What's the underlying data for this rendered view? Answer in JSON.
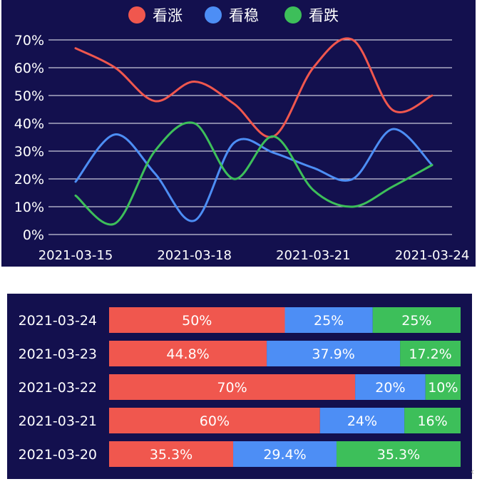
{
  "chart_data": [
    {
      "type": "line",
      "title": "",
      "xlabel": "",
      "ylabel": "",
      "legend_position": "top-center",
      "grid": true,
      "x": [
        "2021-03-15",
        "2021-03-16",
        "2021-03-17",
        "2021-03-18",
        "2021-03-19",
        "2021-03-20",
        "2021-03-21",
        "2021-03-22",
        "2021-03-23",
        "2021-03-24"
      ],
      "x_tick_labels": [
        "2021-03-15",
        "2021-03-18",
        "2021-03-21",
        "2021-03-24"
      ],
      "ylim": [
        0,
        70
      ],
      "y_tick_labels": [
        "0%",
        "10%",
        "20%",
        "30%",
        "40%",
        "50%",
        "60%",
        "70%"
      ],
      "series": [
        {
          "name": "看涨",
          "color": "#f0574e",
          "values": [
            67,
            60,
            48,
            55,
            47,
            35.3,
            60,
            70,
            44.8,
            50
          ]
        },
        {
          "name": "看稳",
          "color": "#4d8ef5",
          "values": [
            19,
            36,
            22,
            5,
            33,
            29.4,
            24,
            20,
            37.9,
            25
          ]
        },
        {
          "name": "看跌",
          "color": "#3dbf5a",
          "values": [
            14,
            4,
            30,
            40,
            20,
            35.3,
            16,
            10,
            17.2,
            25
          ]
        }
      ]
    },
    {
      "type": "bar",
      "orientation": "horizontal",
      "stacked": true,
      "categories": [
        "2021-03-24",
        "2021-03-23",
        "2021-03-22",
        "2021-03-21",
        "2021-03-20"
      ],
      "series": [
        {
          "name": "看涨",
          "color": "#f0574e",
          "values": [
            50,
            44.8,
            70,
            60,
            35.3
          ],
          "labels": [
            "50%",
            "44.8%",
            "70%",
            "60%",
            "35.3%"
          ]
        },
        {
          "name": "看稳",
          "color": "#4d8ef5",
          "values": [
            25,
            37.9,
            20,
            24,
            29.4
          ],
          "labels": [
            "25%",
            "37.9%",
            "20%",
            "24%",
            "29.4%"
          ]
        },
        {
          "name": "看跌",
          "color": "#3dbf5a",
          "values": [
            25,
            17.2,
            10,
            16,
            35.3
          ],
          "labels": [
            "25%",
            "17.2%",
            "10%",
            "16%",
            "35.3%"
          ]
        }
      ]
    }
  ]
}
